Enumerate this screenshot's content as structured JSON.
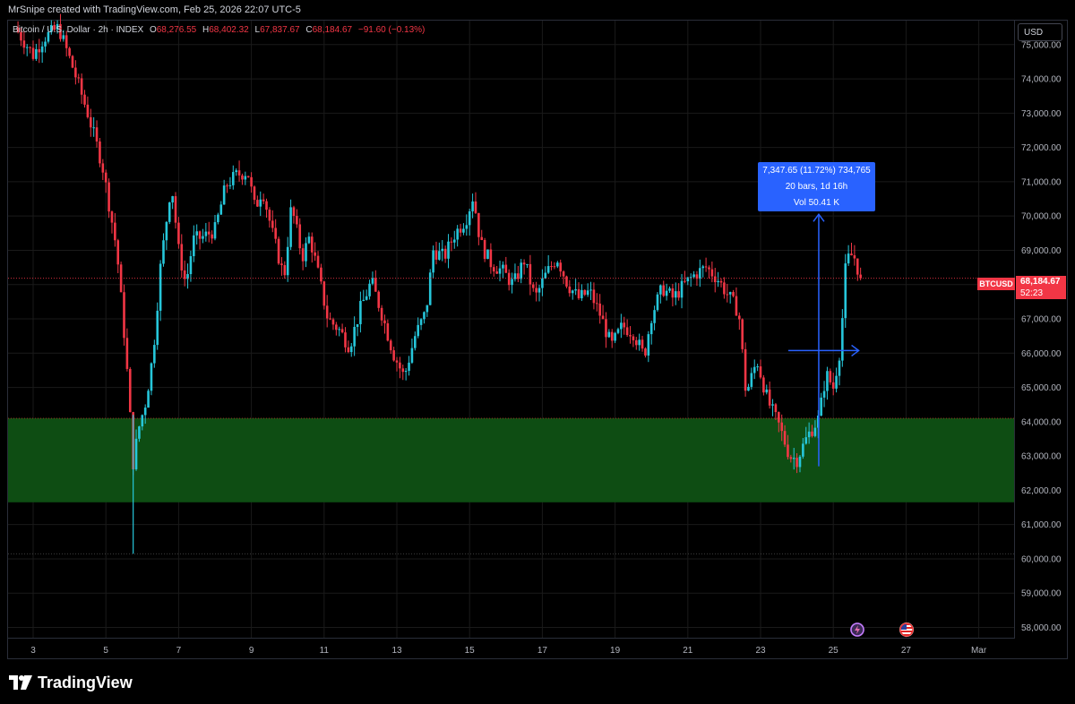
{
  "header": {
    "attribution": "MrSnipe created with TradingView.com, Feb 25, 2026 22:07 UTC-5"
  },
  "legend": {
    "symbol": "Bitcoin / U.S. Dollar · 2h · INDEX",
    "o_label": "O",
    "o": "68,276.55",
    "h_label": "H",
    "h": "68,402.32",
    "l_label": "L",
    "l": "67,837.67",
    "c_label": "C",
    "c": "68,184.67",
    "change": "−91.60 (−0.13%)"
  },
  "currency_button": "USD",
  "measure_label": {
    "line1": "7,347.65 (11.72%) 734,765",
    "line2": "20 bars, 1d 16h",
    "line3": "Vol 50.41 K"
  },
  "last_price": {
    "symbol": "BTCUSD",
    "price": "68,184.67",
    "countdown": "52:23"
  },
  "brand": {
    "name": "TradingView"
  },
  "colors": {
    "up": "#26c6da",
    "down": "#f23645",
    "zone": "#0e4d13",
    "measure": "#2962ff",
    "grid": "#1a1a1a",
    "background": "#000000"
  },
  "icons": [
    "flash-event-icon",
    "us-flag-event-icon",
    "tradingview-logo-icon"
  ],
  "chart_data": {
    "type": "candlestick",
    "timeframe": "2h",
    "ylim": [
      57700,
      75700
    ],
    "y_ticks": [
      "75,000.00",
      "74,000.00",
      "73,000.00",
      "72,000.00",
      "71,000.00",
      "70,000.00",
      "69,000.00",
      "68,000.00",
      "67,000.00",
      "66,000.00",
      "65,000.00",
      "64,000.00",
      "63,000.00",
      "62,000.00",
      "61,000.00",
      "60,000.00",
      "59,000.00",
      "58,000.00"
    ],
    "y_tick_values": [
      75000,
      74000,
      73000,
      72000,
      71000,
      70000,
      69000,
      68000,
      67000,
      66000,
      65000,
      64000,
      63000,
      62000,
      61000,
      60000,
      59000,
      58000
    ],
    "x_ticks": [
      "3",
      "5",
      "7",
      "9",
      "11",
      "13",
      "15",
      "17",
      "19",
      "21",
      "23",
      "25",
      "27",
      "Mar"
    ],
    "x_tick_days": [
      3,
      5,
      7,
      9,
      11,
      13,
      15,
      17,
      19,
      21,
      23,
      25,
      27,
      29
    ],
    "support_zone": [
      61650,
      64100
    ],
    "support_line": 60150,
    "last_price": 68184.67,
    "measure": {
      "from_day": 24.6,
      "from_price": 62700,
      "to_price": 70050,
      "to_day": 25.6
    },
    "path": [
      {
        "d": 2.5,
        "p": 75500
      },
      {
        "d": 3.0,
        "p": 74700
      },
      {
        "d": 3.3,
        "p": 75200
      },
      {
        "d": 3.7,
        "p": 75500
      },
      {
        "d": 4.1,
        "p": 74300
      },
      {
        "d": 4.5,
        "p": 73000
      },
      {
        "d": 4.9,
        "p": 71500
      },
      {
        "d": 5.3,
        "p": 69000
      },
      {
        "d": 5.55,
        "p": 66000
      },
      {
        "d": 5.75,
        "p": 62800
      },
      {
        "d": 5.9,
        "p": 63800
      },
      {
        "d": 6.1,
        "p": 64600
      },
      {
        "d": 6.3,
        "p": 66000
      },
      {
        "d": 6.5,
        "p": 68500
      },
      {
        "d": 6.8,
        "p": 71000
      },
      {
        "d": 7.0,
        "p": 69000
      },
      {
        "d": 7.2,
        "p": 68000
      },
      {
        "d": 7.4,
        "p": 69300
      },
      {
        "d": 7.7,
        "p": 69400
      },
      {
        "d": 8.0,
        "p": 69600
      },
      {
        "d": 8.3,
        "p": 70900
      },
      {
        "d": 8.6,
        "p": 71200
      },
      {
        "d": 8.9,
        "p": 71300
      },
      {
        "d": 9.1,
        "p": 70200
      },
      {
        "d": 9.3,
        "p": 70800
      },
      {
        "d": 9.6,
        "p": 69400
      },
      {
        "d": 9.9,
        "p": 68200
      },
      {
        "d": 10.1,
        "p": 70300
      },
      {
        "d": 10.4,
        "p": 68800
      },
      {
        "d": 10.6,
        "p": 69400
      },
      {
        "d": 10.8,
        "p": 68500
      },
      {
        "d": 11.1,
        "p": 67000
      },
      {
        "d": 11.4,
        "p": 66700
      },
      {
        "d": 11.7,
        "p": 66200
      },
      {
        "d": 12.0,
        "p": 67300
      },
      {
        "d": 12.3,
        "p": 68100
      },
      {
        "d": 12.6,
        "p": 67100
      },
      {
        "d": 12.9,
        "p": 66000
      },
      {
        "d": 13.2,
        "p": 65300
      },
      {
        "d": 13.5,
        "p": 66500
      },
      {
        "d": 13.8,
        "p": 67200
      },
      {
        "d": 14.0,
        "p": 69000
      },
      {
        "d": 14.3,
        "p": 68800
      },
      {
        "d": 14.6,
        "p": 69500
      },
      {
        "d": 14.9,
        "p": 69900
      },
      {
        "d": 15.1,
        "p": 70600
      },
      {
        "d": 15.3,
        "p": 69200
      },
      {
        "d": 15.6,
        "p": 68600
      },
      {
        "d": 15.9,
        "p": 68400
      },
      {
        "d": 16.2,
        "p": 68000
      },
      {
        "d": 16.5,
        "p": 68700
      },
      {
        "d": 16.8,
        "p": 67600
      },
      {
        "d": 17.1,
        "p": 68300
      },
      {
        "d": 17.4,
        "p": 68800
      },
      {
        "d": 17.7,
        "p": 68000
      },
      {
        "d": 18.0,
        "p": 67600
      },
      {
        "d": 18.3,
        "p": 67800
      },
      {
        "d": 18.6,
        "p": 67100
      },
      {
        "d": 18.9,
        "p": 66200
      },
      {
        "d": 19.2,
        "p": 66800
      },
      {
        "d": 19.5,
        "p": 66600
      },
      {
        "d": 19.8,
        "p": 65900
      },
      {
        "d": 20.0,
        "p": 67100
      },
      {
        "d": 20.3,
        "p": 67900
      },
      {
        "d": 20.6,
        "p": 67600
      },
      {
        "d": 20.9,
        "p": 68000
      },
      {
        "d": 21.2,
        "p": 68300
      },
      {
        "d": 21.5,
        "p": 68500
      },
      {
        "d": 21.8,
        "p": 68200
      },
      {
        "d": 22.1,
        "p": 67700
      },
      {
        "d": 22.4,
        "p": 67200
      },
      {
        "d": 22.6,
        "p": 64800
      },
      {
        "d": 22.9,
        "p": 65800
      },
      {
        "d": 23.2,
        "p": 64600
      },
      {
        "d": 23.5,
        "p": 63900
      },
      {
        "d": 23.8,
        "p": 63000
      },
      {
        "d": 24.0,
        "p": 62900
      },
      {
        "d": 24.3,
        "p": 63600
      },
      {
        "d": 24.6,
        "p": 64100
      },
      {
        "d": 24.8,
        "p": 65400
      },
      {
        "d": 25.0,
        "p": 65000
      },
      {
        "d": 25.2,
        "p": 66200
      },
      {
        "d": 25.35,
        "p": 68700
      },
      {
        "d": 25.55,
        "p": 68900
      },
      {
        "d": 25.75,
        "p": 68184.67
      }
    ]
  }
}
